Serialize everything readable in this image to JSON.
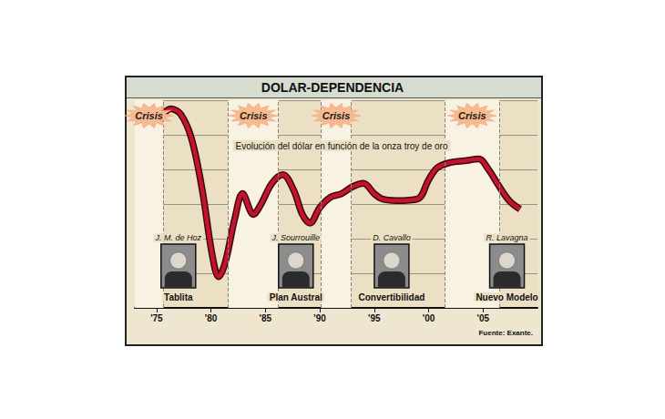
{
  "chart_data": {
    "type": "line",
    "title": "DOLAR-DEPENDENCIA",
    "subtitle": "Evolución del dólar en función de la onza troy de oro",
    "source": "Fuente: Exante.",
    "x": [
      1975.2,
      1976.3,
      1977.2,
      1978.2,
      1979.2,
      1980.1,
      1980.7,
      1981.3,
      1982.2,
      1982.9,
      1983.9,
      1984.6,
      1985.6,
      1986.6,
      1987.6,
      1988.4,
      1989.1,
      1990,
      1991,
      1992,
      1993,
      1994,
      1995,
      1995.7,
      1997,
      1999,
      2000,
      2000.8,
      2002,
      2003.3,
      2004.6,
      2005.5,
      2006.3,
      2007.4,
      2008.4
    ],
    "values": [
      5.4,
      5.75,
      5.6,
      4.9,
      3.4,
      1.55,
      0.9,
      1.3,
      2.6,
      3.3,
      2.7,
      3.0,
      3.6,
      3.85,
      3.4,
      2.7,
      2.45,
      2.9,
      3.2,
      3.3,
      3.5,
      3.6,
      3.3,
      3.15,
      3.1,
      3.15,
      3.7,
      4.05,
      4.2,
      4.25,
      4.3,
      4.0,
      3.6,
      3.1,
      2.85
    ],
    "color": "#c4122f",
    "marker": "none",
    "xlim": [
      1973,
      2010
    ],
    "xticks": [
      {
        "value": 1975,
        "label": "'75"
      },
      {
        "value": 1980,
        "label": "'80"
      },
      {
        "value": 1985,
        "label": "'85"
      },
      {
        "value": 1990,
        "label": "'90"
      },
      {
        "value": 1995,
        "label": "'95"
      },
      {
        "value": 2000,
        "label": "'00"
      },
      {
        "value": 2005,
        "label": "'05"
      }
    ],
    "ylim": [
      0,
      6
    ],
    "yticks": [
      0,
      1,
      2,
      3,
      4,
      5,
      6
    ],
    "grid": true,
    "tick_labels": "x",
    "annotations": [
      {
        "text": "Crisis",
        "x": 1974.3,
        "x_range": [
          1973,
          1975.6
        ]
      },
      {
        "text": "Crisis",
        "x": 1983.9,
        "x_range": [
          1981.6,
          1986.2
        ]
      },
      {
        "text": "Crisis",
        "x": 1991.5,
        "x_range": [
          1990.1,
          1992.9
        ]
      },
      {
        "text": "Crisis",
        "x": 2004,
        "x_range": [
          2001.5,
          2006.5
        ]
      }
    ],
    "portraits": [
      {
        "text": "J. M. de Hoz",
        "caption": "Tablita",
        "x": 1977
      },
      {
        "text": "J. Sourrouille",
        "caption": "Plan Austral",
        "x": 1987.8
      },
      {
        "text": "D. Cavallo",
        "caption": "Convertibilidad",
        "x": 1996.6
      },
      {
        "text": "R. Lavagna",
        "caption": "Nuevo Modelo",
        "x": 2007.2
      }
    ]
  }
}
